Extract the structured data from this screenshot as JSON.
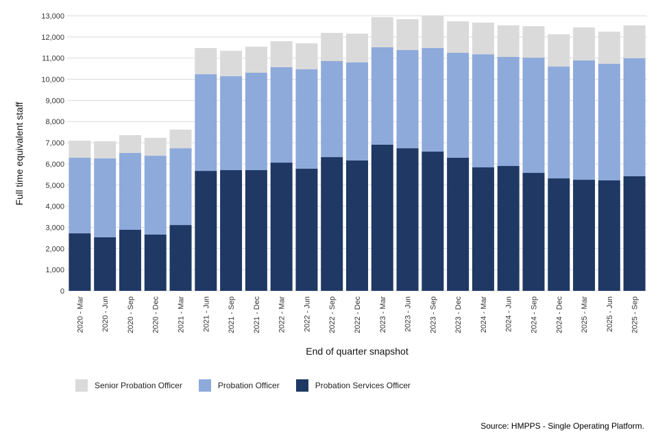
{
  "chart_data": {
    "type": "bar",
    "stacked": true,
    "xlabel": "End of quarter snapshot",
    "ylabel": "Full time equivalent staff",
    "ylim": [
      0,
      13000
    ],
    "yticks": [
      0,
      1000,
      2000,
      3000,
      4000,
      5000,
      6000,
      7000,
      8000,
      9000,
      10000,
      11000,
      12000,
      13000
    ],
    "ytick_labels": [
      "0",
      "1,000",
      "2,000",
      "3,000",
      "4,000",
      "5,000",
      "6,000",
      "7,000",
      "8,000",
      "9,000",
      "10,000",
      "11,000",
      "12,000",
      "13,000"
    ],
    "grid": "horizontal",
    "legend_position": "bottom-left",
    "categories": [
      "2020 - Mar",
      "2020 - Jun",
      "2020 - Sep",
      "2020 - Dec",
      "2021 - Mar",
      "2021 - Jun",
      "2021 - Sep",
      "2021 - Dec",
      "2022 - Mar",
      "2022 - Jun",
      "2022 - Sep",
      "2022 - Dec",
      "2023 - Mar",
      "2023 - Jun",
      "2023 - Sep",
      "2023 - Dec",
      "2024 - Mar",
      "2024 - Jun",
      "2024 - Sep",
      "2024 - Dec",
      "2025 - Mar",
      "2025 - Jun",
      "2025 - Sep"
    ],
    "series": [
      {
        "name": "Probation Services Officer",
        "color": "#1f3864",
        "values": [
          2720,
          2530,
          2885,
          2660,
          3110,
          5670,
          5705,
          5705,
          6060,
          5770,
          6320,
          6160,
          6905,
          6740,
          6580,
          6290,
          5835,
          5900,
          5575,
          5315,
          5250,
          5220,
          5415
        ]
      },
      {
        "name": "Probation Officer",
        "color": "#8eaadb",
        "values": [
          3570,
          3730,
          3630,
          3725,
          3630,
          4570,
          4440,
          4605,
          4510,
          4700,
          4540,
          4635,
          4605,
          4640,
          4895,
          4960,
          5345,
          5155,
          5445,
          5285,
          5640,
          5510,
          5575
        ]
      },
      {
        "name": "Senior Probation Officer",
        "color": "#dadada",
        "values": [
          810,
          810,
          845,
          845,
          880,
          1235,
          1200,
          1230,
          1230,
          1230,
          1330,
          1360,
          1425,
          1460,
          1525,
          1490,
          1495,
          1490,
          1490,
          1525,
          1560,
          1520,
          1555
        ]
      }
    ],
    "legend_order": [
      "Senior Probation Officer",
      "Probation Officer",
      "Probation Services Officer"
    ]
  },
  "source": "Source: HMPPS - Single Operating Platform."
}
